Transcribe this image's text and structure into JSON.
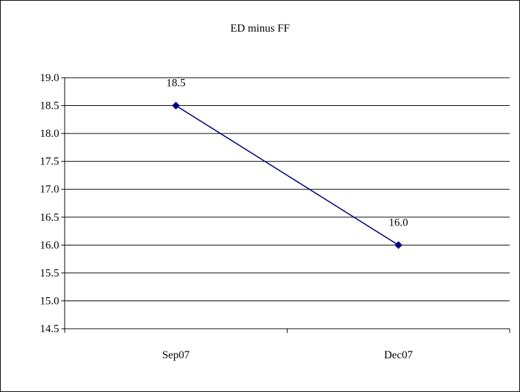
{
  "chart_data": {
    "type": "line",
    "title": "ED minus FF",
    "xlabel": "",
    "ylabel": "",
    "categories": [
      "Sep07",
      "Dec07"
    ],
    "series": [
      {
        "values": [
          18.5,
          16.0
        ],
        "data_labels": [
          "18.5",
          "16.0"
        ],
        "color": "#000080",
        "marker": "diamond"
      }
    ],
    "ylim": [
      14.5,
      19.0
    ],
    "ytick_step": 0.5,
    "ytick_labels": [
      "19.0",
      "18.5",
      "18.0",
      "17.5",
      "17.0",
      "16.5",
      "16.0",
      "15.5",
      "15.0",
      "14.5"
    ],
    "grid": "horizontal",
    "legend": "none"
  }
}
